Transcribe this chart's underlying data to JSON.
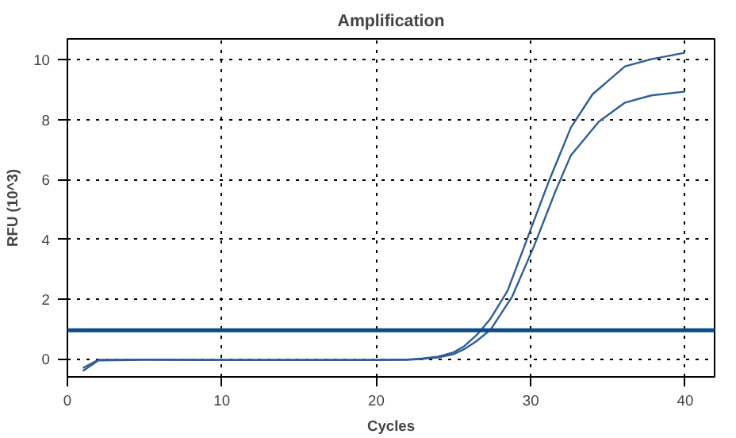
{
  "chart_data": {
    "type": "line",
    "title": "Amplification",
    "xlabel": "Cycles",
    "ylabel": "RFU (10^3)",
    "xlim": [
      0,
      41.9
    ],
    "ylim": [
      -0.6,
      10.7
    ],
    "xticks": [
      0,
      10,
      20,
      30,
      40
    ],
    "yticks": [
      0,
      2,
      4,
      6,
      8,
      10
    ],
    "grid": true,
    "line_style": "solid",
    "marker": "none",
    "series": [
      {
        "color": "#2f5f95",
        "x": [
          1,
          2,
          5,
          10,
          15,
          20,
          22,
          23,
          24,
          25,
          25.7,
          26.5,
          27.4,
          28.5,
          29.85,
          31.2,
          32.6,
          34.0,
          36.1,
          37.8,
          40
        ],
        "values": [
          -0.3,
          -0.03,
          -0.02,
          -0.03,
          -0.03,
          -0.03,
          -0.02,
          0.02,
          0.08,
          0.22,
          0.43,
          0.8,
          1.35,
          2.28,
          4.13,
          5.98,
          7.74,
          8.85,
          9.78,
          10.02,
          10.24
        ]
      },
      {
        "color": "#2f5f95",
        "x": [
          1,
          2,
          5,
          10,
          15,
          20,
          22,
          23,
          24,
          25,
          25.7,
          26.5,
          27.4,
          28.8,
          30.2,
          31.6,
          32.6,
          34.4,
          36.1,
          37.8,
          40
        ],
        "values": [
          -0.4,
          -0.05,
          -0.03,
          -0.04,
          -0.04,
          -0.04,
          -0.03,
          0.0,
          0.05,
          0.16,
          0.33,
          0.6,
          0.98,
          2.09,
          3.76,
          5.61,
          6.81,
          7.93,
          8.57,
          8.81,
          8.94
        ]
      }
    ],
    "ref_lines": [
      {
        "axis": "y",
        "value": 0.96,
        "color": "#0a4a85"
      }
    ]
  }
}
